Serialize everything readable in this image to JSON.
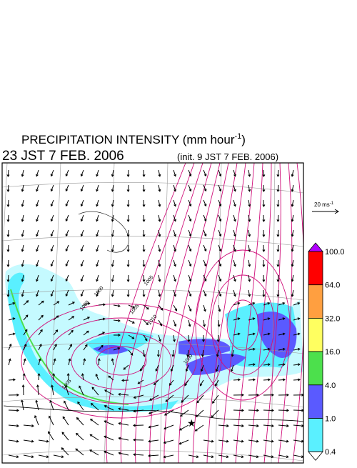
{
  "header": {
    "title_main": "PRECIPITATION INTENSITY (mm hour",
    "title_exp": "-1",
    "title_end": ")",
    "valid_time": "23 JST 7 FEB. 2006",
    "init_time": "(init. 9 JST 7 FEB. 2006)"
  },
  "wind_scale": {
    "label": "20 ms",
    "exp": "-1"
  },
  "isobar_labels": [
    "1000",
    "1000",
    "1005",
    "1005",
    "1010",
    "1000",
    "1005"
  ],
  "colorbar": {
    "colors": [
      "#ff0000",
      "#ff9f40",
      "#ffff60",
      "#4ce04c",
      "#5a5aff",
      "#5af0ff"
    ],
    "over_color": "#b000ff",
    "under_color": "#ffffff",
    "ticks": [
      {
        "value": 100,
        "label": "100.0"
      },
      {
        "value": 64,
        "label": "64.0"
      },
      {
        "value": 32,
        "label": "32.0"
      },
      {
        "value": 16,
        "label": "16.0"
      },
      {
        "value": 4,
        "label": "4.0"
      },
      {
        "value": 1,
        "label": "1.0"
      },
      {
        "value": 0.4,
        "label": "0.4"
      }
    ]
  }
}
